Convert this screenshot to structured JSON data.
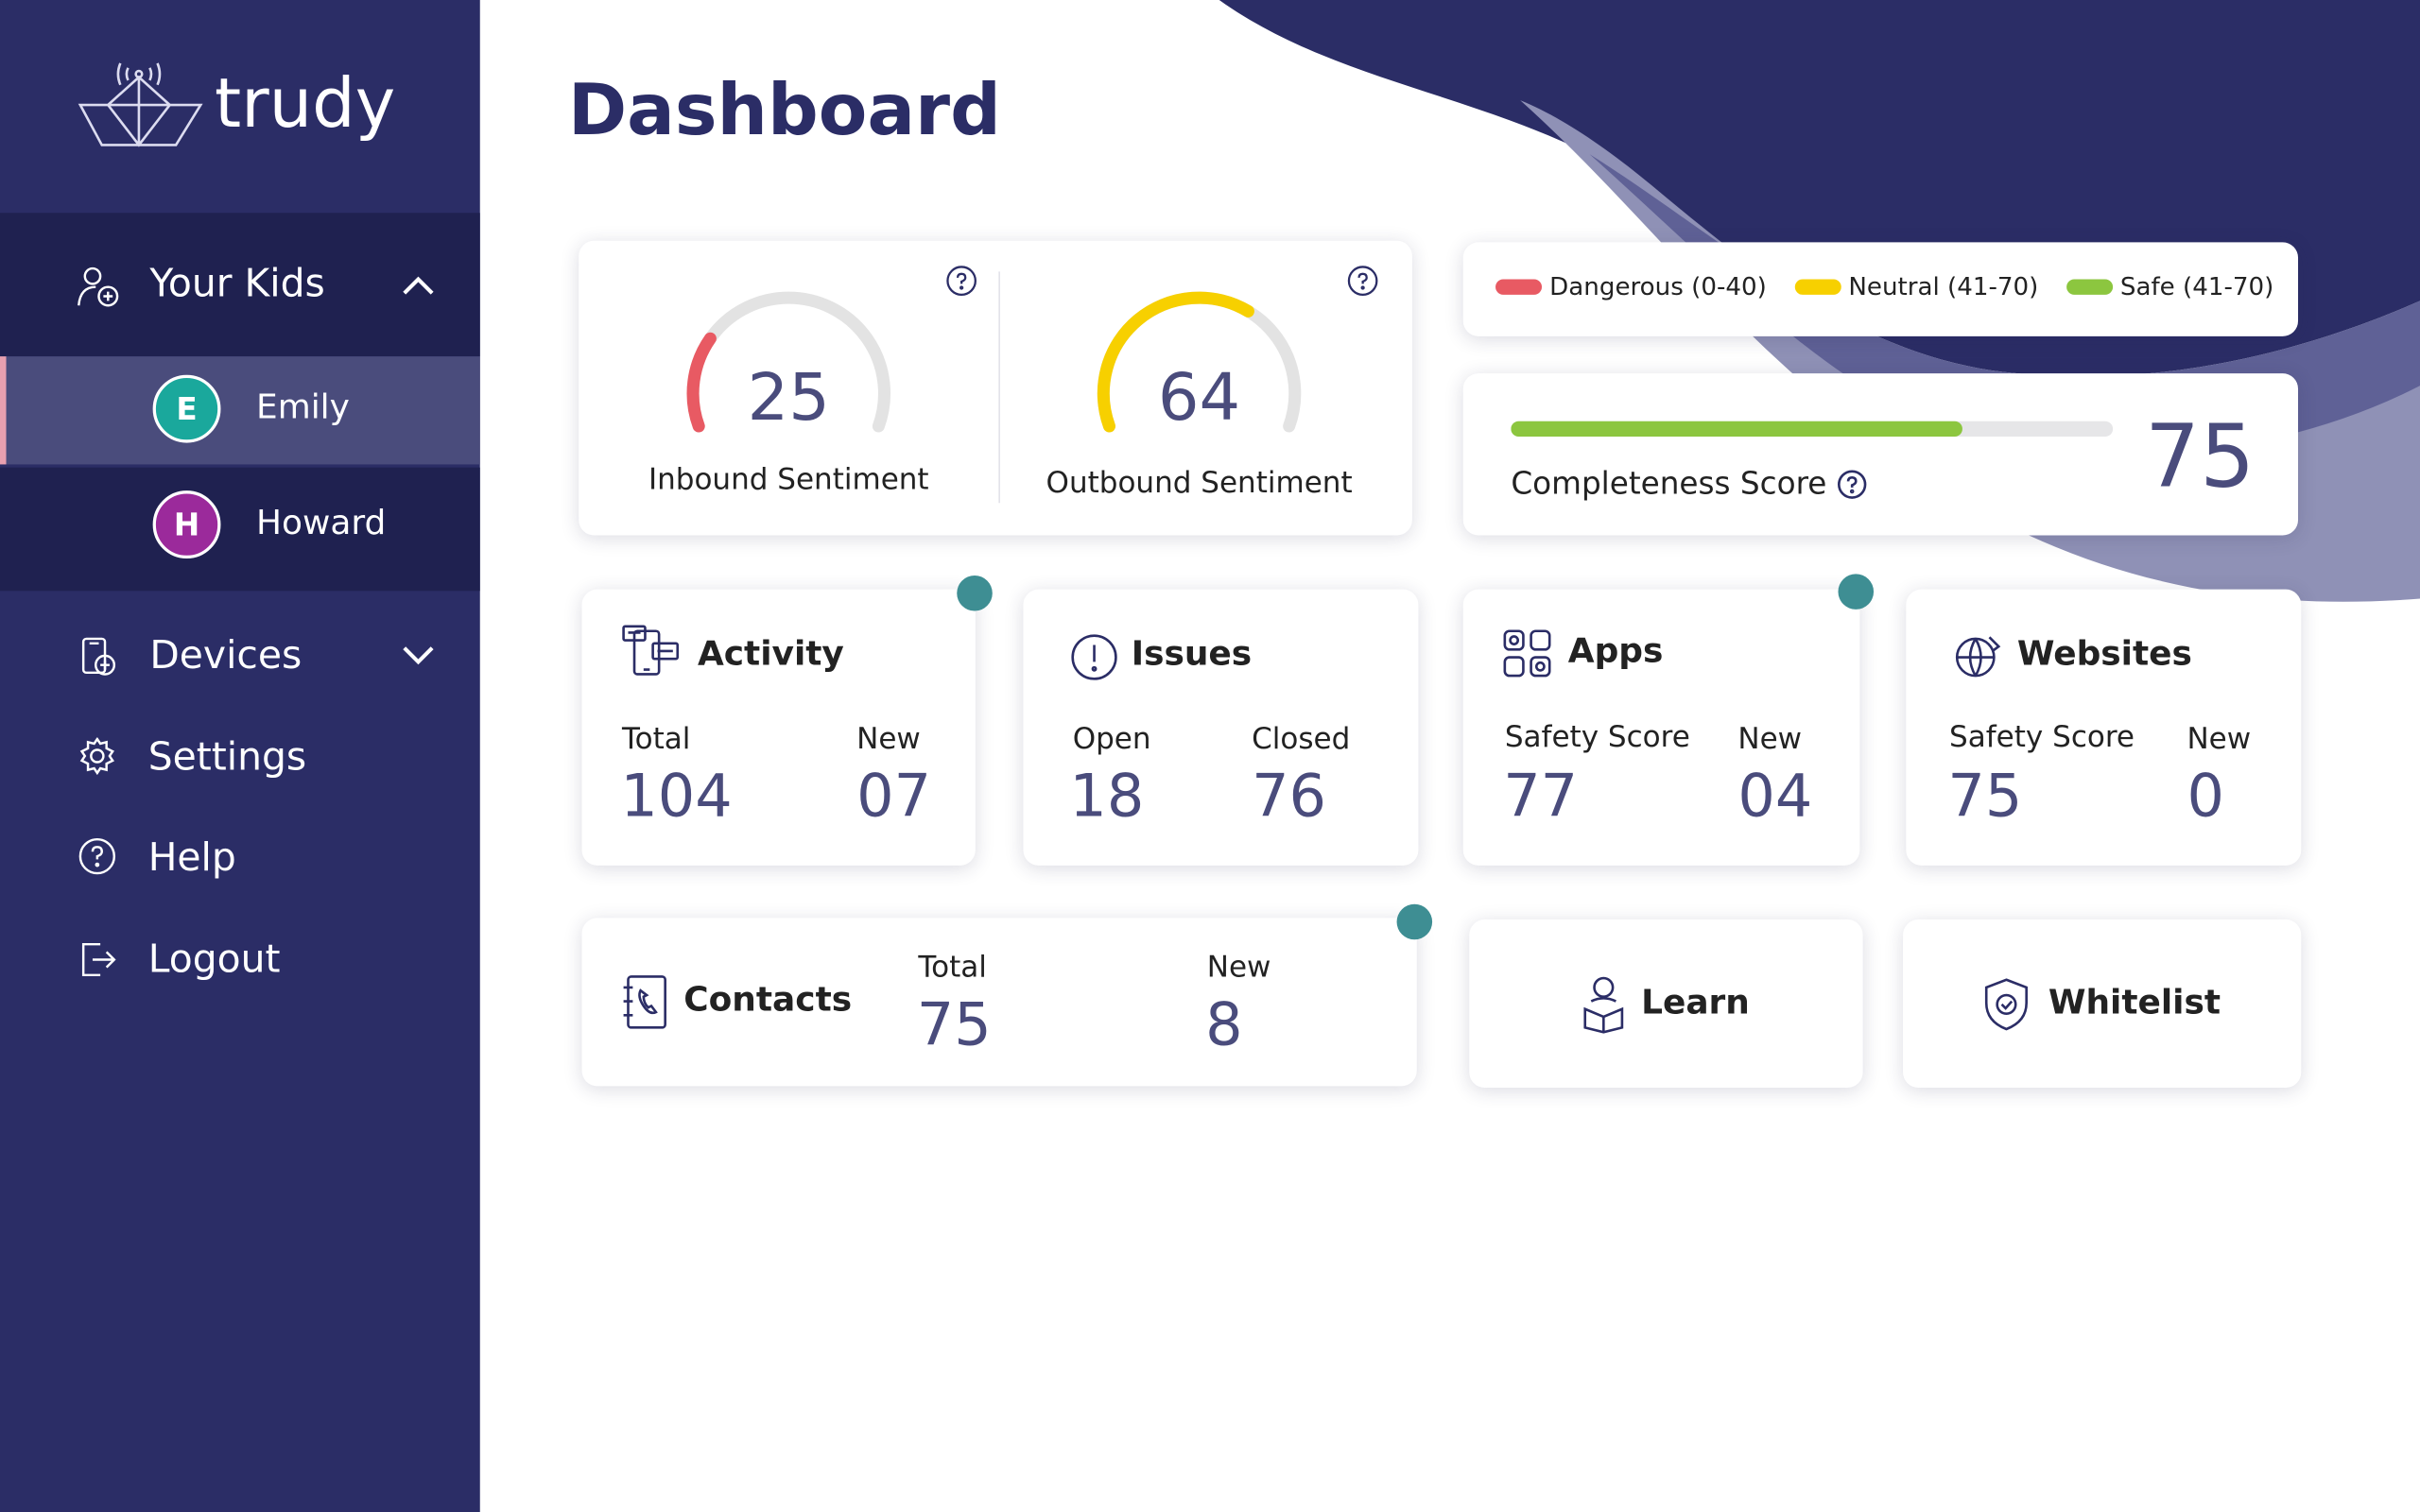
{
  "sidebar": {
    "brand": "trudy",
    "kids_heading": "Your Kids",
    "kids": [
      {
        "initial": "E",
        "name": "Emily",
        "color": "#1aa89c",
        "selected": true
      },
      {
        "initial": "H",
        "name": "Howard",
        "color": "#9b2a9b",
        "selected": false
      }
    ],
    "menu": [
      "Devices",
      "Settings",
      "Help",
      "Logout"
    ]
  },
  "header": {
    "title": "Dashboard"
  },
  "sentiment": [
    {
      "label": "Inbound Sentiment",
      "value": 25,
      "color": "#e85a63"
    },
    {
      "label": "Outbound Sentiment",
      "value": 64,
      "color": "#f7d000"
    }
  ],
  "legend": [
    {
      "label": "Dangerous (0-40)",
      "color": "#e85a63"
    },
    {
      "label": "Neutral (41-70)",
      "color": "#f7d000"
    },
    {
      "label": "Safe (41-70)",
      "color": "#8cc63f"
    }
  ],
  "completeness": {
    "label": "Completeness Score",
    "value": 75,
    "color": "#8cc63f"
  },
  "cards": [
    {
      "title": "Activity",
      "stats": [
        {
          "label": "Total",
          "value": 104
        },
        {
          "label": "New",
          "value": "07"
        }
      ],
      "notification": true
    },
    {
      "title": "Issues",
      "stats": [
        {
          "label": "Open",
          "value": 18
        },
        {
          "label": "Closed",
          "value": 76
        }
      ],
      "notification": false
    },
    {
      "title": "Apps",
      "stats": [
        {
          "label": "Safety Score",
          "value": 77
        },
        {
          "label": "New",
          "value": "04"
        }
      ],
      "notification": true
    },
    {
      "title": "Websites",
      "stats": [
        {
          "label": "Safety Score",
          "value": 75
        },
        {
          "label": "New",
          "value": 0
        }
      ],
      "notification": false
    }
  ],
  "contacts": {
    "title": "Contacts",
    "stats": [
      {
        "label": "Total",
        "value": 75
      },
      {
        "label": "New",
        "value": 8
      }
    ],
    "notification": true
  },
  "actions": [
    "Learn",
    "Whitelist"
  ]
}
